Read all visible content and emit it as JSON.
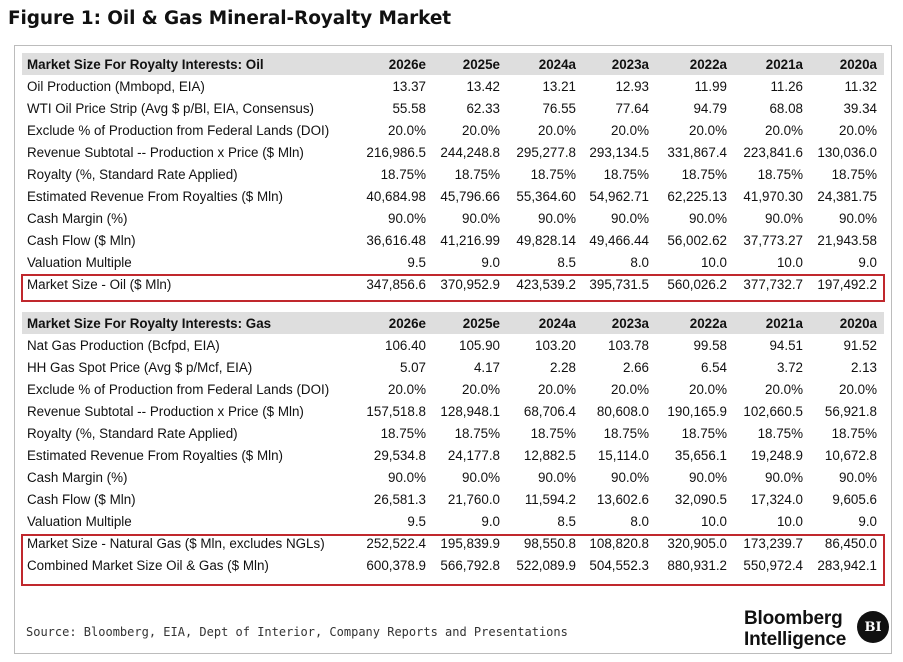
{
  "figure_title": "Figure 1: Oil & Gas Mineral-Royalty Market",
  "oil_table": {
    "header_label": "Market Size For Royalty Interests: Oil",
    "years": [
      "2026e",
      "2025e",
      "2024a",
      "2023a",
      "2022a",
      "2021a",
      "2020a"
    ],
    "rows": [
      {
        "label": "Oil Production (Mmbopd, EIA)",
        "values": [
          "13.37",
          "13.42",
          "13.21",
          "12.93",
          "11.99",
          "11.26",
          "11.32"
        ]
      },
      {
        "label": "WTI Oil Price Strip (Avg $ p/Bl, EIA, Consensus)",
        "values": [
          "55.58",
          "62.33",
          "76.55",
          "77.64",
          "94.79",
          "68.08",
          "39.34"
        ]
      },
      {
        "label": "Exclude % of Production from Federal Lands (DOI)",
        "values": [
          "20.0%",
          "20.0%",
          "20.0%",
          "20.0%",
          "20.0%",
          "20.0%",
          "20.0%"
        ]
      },
      {
        "label": "Revenue Subtotal -- Production x Price ($ Mln)",
        "values": [
          "216,986.5",
          "244,248.8",
          "295,277.8",
          "293,134.5",
          "331,867.4",
          "223,841.6",
          "130,036.0"
        ]
      },
      {
        "label": "Royalty (%, Standard Rate Applied)",
        "values": [
          "18.75%",
          "18.75%",
          "18.75%",
          "18.75%",
          "18.75%",
          "18.75%",
          "18.75%"
        ]
      },
      {
        "label": "Estimated Revenue From Royalties ($ Mln)",
        "values": [
          "40,684.98",
          "45,796.66",
          "55,364.60",
          "54,962.71",
          "62,225.13",
          "41,970.30",
          "24,381.75"
        ]
      },
      {
        "label": "Cash Margin (%)",
        "values": [
          "90.0%",
          "90.0%",
          "90.0%",
          "90.0%",
          "90.0%",
          "90.0%",
          "90.0%"
        ]
      },
      {
        "label": "Cash Flow ($ Mln)",
        "values": [
          "36,616.48",
          "41,216.99",
          "49,828.14",
          "49,466.44",
          "56,002.62",
          "37,773.27",
          "21,943.58"
        ]
      },
      {
        "label": "Valuation Multiple",
        "values": [
          "9.5",
          "9.0",
          "8.5",
          "8.0",
          "10.0",
          "10.0",
          "9.0"
        ]
      }
    ],
    "market_size": {
      "label": "Market Size - Oil ($ Mln)",
      "values": [
        "347,856.6",
        "370,952.9",
        "423,539.2",
        "395,731.5",
        "560,026.2",
        "377,732.7",
        "197,492.2"
      ]
    }
  },
  "gas_table": {
    "header_label": "Market Size For Royalty Interests: Gas",
    "years": [
      "2026e",
      "2025e",
      "2024a",
      "2023a",
      "2022a",
      "2021a",
      "2020a"
    ],
    "rows": [
      {
        "label": "Nat Gas Production (Bcfpd, EIA)",
        "values": [
          "106.40",
          "105.90",
          "103.20",
          "103.78",
          "99.58",
          "94.51",
          "91.52"
        ]
      },
      {
        "label": "HH Gas Spot Price (Avg $ p/Mcf, EIA)",
        "values": [
          "5.07",
          "4.17",
          "2.28",
          "2.66",
          "6.54",
          "3.72",
          "2.13"
        ]
      },
      {
        "label": "Exclude % of Production from Federal Lands (DOI)",
        "values": [
          "20.0%",
          "20.0%",
          "20.0%",
          "20.0%",
          "20.0%",
          "20.0%",
          "20.0%"
        ]
      },
      {
        "label": "Revenue Subtotal -- Production x Price ($ Mln)",
        "values": [
          "157,518.8",
          "128,948.1",
          "68,706.4",
          "80,608.0",
          "190,165.9",
          "102,660.5",
          "56,921.8"
        ]
      },
      {
        "label": "Royalty (%, Standard Rate Applied)",
        "values": [
          "18.75%",
          "18.75%",
          "18.75%",
          "18.75%",
          "18.75%",
          "18.75%",
          "18.75%"
        ]
      },
      {
        "label": "Estimated Revenue From Royalties ($ Mln)",
        "values": [
          "29,534.8",
          "24,177.8",
          "12,882.5",
          "15,114.0",
          "35,656.1",
          "19,248.9",
          "10,672.8"
        ]
      },
      {
        "label": "Cash Margin (%)",
        "values": [
          "90.0%",
          "90.0%",
          "90.0%",
          "90.0%",
          "90.0%",
          "90.0%",
          "90.0%"
        ]
      },
      {
        "label": "Cash Flow ($ Mln)",
        "values": [
          "26,581.3",
          "21,760.0",
          "11,594.2",
          "13,602.6",
          "32,090.5",
          "17,324.0",
          "9,605.6"
        ]
      },
      {
        "label": "Valuation Multiple",
        "values": [
          "9.5",
          "9.0",
          "8.5",
          "8.0",
          "10.0",
          "10.0",
          "9.0"
        ]
      }
    ],
    "market_size": {
      "label": "Market Size - Natural Gas ($ Mln, excludes NGLs)",
      "values": [
        "252,522.4",
        "195,839.9",
        "98,550.8",
        "108,820.8",
        "320,905.0",
        "173,239.7",
        "86,450.0"
      ]
    },
    "combined": {
      "label": "Combined Market Size Oil & Gas ($ Mln)",
      "values": [
        "600,378.9",
        "566,792.8",
        "522,089.9",
        "504,552.3",
        "880,931.2",
        "550,972.4",
        "283,942.1"
      ]
    }
  },
  "source": "Source: Bloomberg, EIA, Dept of Interior, Company Reports and Presentations",
  "brand": {
    "line1": "Bloomberg",
    "line2": "Intelligence",
    "badge": "BI"
  },
  "colors": {
    "header_bg": "#dedede",
    "highlight_border": "#c0282d",
    "text": "#111111"
  }
}
